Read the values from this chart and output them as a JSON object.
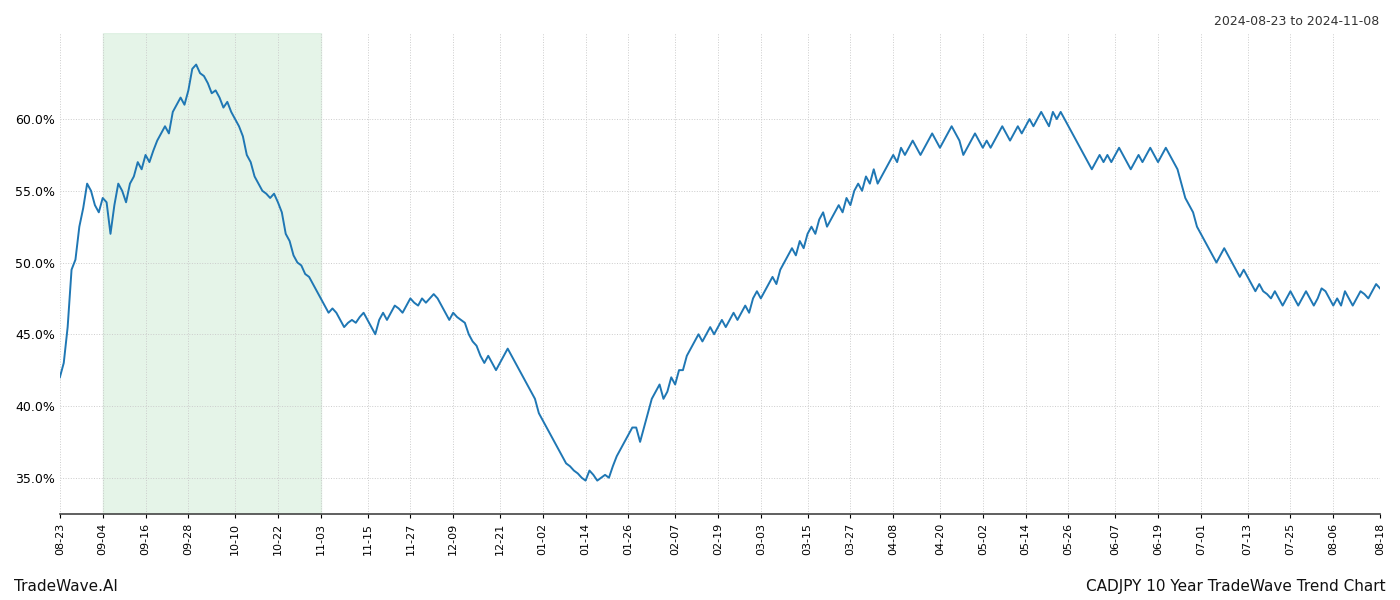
{
  "title_right": "2024-08-23 to 2024-11-08",
  "footer_left": "TradeWave.AI",
  "footer_right": "CADJPY 10 Year TradeWave Trend Chart",
  "line_color": "#1f77b4",
  "line_width": 1.4,
  "shade_color": "#d4edda",
  "shade_alpha": 0.6,
  "background_color": "#ffffff",
  "grid_color": "#cccccc",
  "grid_style": ":",
  "ylim": [
    32.5,
    66.0
  ],
  "yticks": [
    35.0,
    40.0,
    45.0,
    50.0,
    55.0,
    60.0
  ],
  "x_labels": [
    "08-23",
    "09-04",
    "09-16",
    "09-28",
    "10-10",
    "10-22",
    "11-03",
    "11-15",
    "11-27",
    "12-09",
    "12-21",
    "01-02",
    "01-14",
    "01-26",
    "02-07",
    "02-19",
    "03-03",
    "03-15",
    "03-27",
    "04-08",
    "04-20",
    "05-02",
    "05-14",
    "05-26",
    "06-07",
    "06-19",
    "07-01",
    "07-13",
    "07-25",
    "08-06",
    "08-18"
  ],
  "shade_start_label": "09-04",
  "shade_end_label": "11-03",
  "values": [
    42.0,
    43.0,
    45.5,
    49.5,
    50.2,
    52.5,
    53.8,
    55.5,
    55.0,
    54.0,
    53.5,
    54.5,
    54.2,
    52.0,
    54.0,
    55.5,
    55.0,
    54.2,
    55.5,
    56.0,
    57.0,
    56.5,
    57.5,
    57.0,
    57.8,
    58.5,
    59.0,
    59.5,
    59.0,
    60.5,
    61.0,
    61.5,
    61.0,
    62.0,
    63.5,
    63.8,
    63.2,
    63.0,
    62.5,
    61.8,
    62.0,
    61.5,
    60.8,
    61.2,
    60.5,
    60.0,
    59.5,
    58.8,
    57.5,
    57.0,
    56.0,
    55.5,
    55.0,
    54.8,
    54.5,
    54.8,
    54.2,
    53.5,
    52.0,
    51.5,
    50.5,
    50.0,
    49.8,
    49.2,
    49.0,
    48.5,
    48.0,
    47.5,
    47.0,
    46.5,
    46.8,
    46.5,
    46.0,
    45.5,
    45.8,
    46.0,
    45.8,
    46.2,
    46.5,
    46.0,
    45.5,
    45.0,
    46.0,
    46.5,
    46.0,
    46.5,
    47.0,
    46.8,
    46.5,
    47.0,
    47.5,
    47.2,
    47.0,
    47.5,
    47.2,
    47.5,
    47.8,
    47.5,
    47.0,
    46.5,
    46.0,
    46.5,
    46.2,
    46.0,
    45.8,
    45.0,
    44.5,
    44.2,
    43.5,
    43.0,
    43.5,
    43.0,
    42.5,
    43.0,
    43.5,
    44.0,
    43.5,
    43.0,
    42.5,
    42.0,
    41.5,
    41.0,
    40.5,
    39.5,
    39.0,
    38.5,
    38.0,
    37.5,
    37.0,
    36.5,
    36.0,
    35.8,
    35.5,
    35.3,
    35.0,
    34.8,
    35.5,
    35.2,
    34.8,
    35.0,
    35.2,
    35.0,
    35.8,
    36.5,
    37.0,
    37.5,
    38.0,
    38.5,
    38.5,
    37.5,
    38.5,
    39.5,
    40.5,
    41.0,
    41.5,
    40.5,
    41.0,
    42.0,
    41.5,
    42.5,
    42.5,
    43.5,
    44.0,
    44.5,
    45.0,
    44.5,
    45.0,
    45.5,
    45.0,
    45.5,
    46.0,
    45.5,
    46.0,
    46.5,
    46.0,
    46.5,
    47.0,
    46.5,
    47.5,
    48.0,
    47.5,
    48.0,
    48.5,
    49.0,
    48.5,
    49.5,
    50.0,
    50.5,
    51.0,
    50.5,
    51.5,
    51.0,
    52.0,
    52.5,
    52.0,
    53.0,
    53.5,
    52.5,
    53.0,
    53.5,
    54.0,
    53.5,
    54.5,
    54.0,
    55.0,
    55.5,
    55.0,
    56.0,
    55.5,
    56.5,
    55.5,
    56.0,
    56.5,
    57.0,
    57.5,
    57.0,
    58.0,
    57.5,
    58.0,
    58.5,
    58.0,
    57.5,
    58.0,
    58.5,
    59.0,
    58.5,
    58.0,
    58.5,
    59.0,
    59.5,
    59.0,
    58.5,
    57.5,
    58.0,
    58.5,
    59.0,
    58.5,
    58.0,
    58.5,
    58.0,
    58.5,
    59.0,
    59.5,
    59.0,
    58.5,
    59.0,
    59.5,
    59.0,
    59.5,
    60.0,
    59.5,
    60.0,
    60.5,
    60.0,
    59.5,
    60.5,
    60.0,
    60.5,
    60.0,
    59.5,
    59.0,
    58.5,
    58.0,
    57.5,
    57.0,
    56.5,
    57.0,
    57.5,
    57.0,
    57.5,
    57.0,
    57.5,
    58.0,
    57.5,
    57.0,
    56.5,
    57.0,
    57.5,
    57.0,
    57.5,
    58.0,
    57.5,
    57.0,
    57.5,
    58.0,
    57.5,
    57.0,
    56.5,
    55.5,
    54.5,
    54.0,
    53.5,
    52.5,
    52.0,
    51.5,
    51.0,
    50.5,
    50.0,
    50.5,
    51.0,
    50.5,
    50.0,
    49.5,
    49.0,
    49.5,
    49.0,
    48.5,
    48.0,
    48.5,
    48.0,
    47.8,
    47.5,
    48.0,
    47.5,
    47.0,
    47.5,
    48.0,
    47.5,
    47.0,
    47.5,
    48.0,
    47.5,
    47.0,
    47.5,
    48.2,
    48.0,
    47.5,
    47.0,
    47.5,
    47.0,
    48.0,
    47.5,
    47.0,
    47.5,
    48.0,
    47.8,
    47.5,
    48.0,
    48.5,
    48.2
  ]
}
